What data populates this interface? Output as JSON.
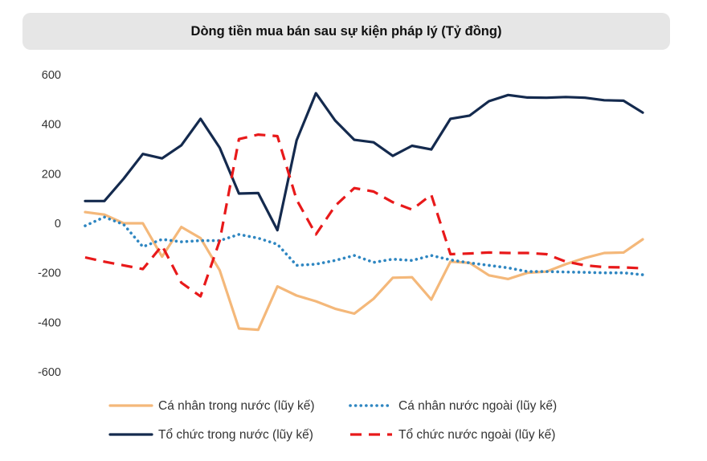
{
  "chart_data": {
    "type": "line",
    "title": "Dòng tiền mua bán sau sự kiện pháp lý (Tỷ đồng)",
    "xlabel": "",
    "ylabel": "",
    "ylim": [
      -600,
      600
    ],
    "yticks": [
      600,
      400,
      200,
      0,
      -200,
      -400,
      -600
    ],
    "grid": false,
    "legend_position": "bottom",
    "x": [
      1,
      2,
      3,
      4,
      5,
      6,
      7,
      8,
      9,
      10,
      11,
      12,
      13,
      14,
      15,
      16,
      17,
      18,
      19,
      20,
      21,
      22,
      23,
      24,
      25,
      26,
      27,
      28,
      29,
      30
    ],
    "series": [
      {
        "name": "Cá nhân trong nước (lũy kế)",
        "color": "#f4b87a",
        "style": "solid",
        "values": [
          45,
          35,
          0,
          0,
          -135,
          -15,
          -60,
          -190,
          -425,
          -430,
          -255,
          -292,
          -315,
          -345,
          -365,
          -305,
          -220,
          -218,
          -308,
          -155,
          -160,
          -210,
          -225,
          -200,
          -195,
          -165,
          -140,
          -120,
          -118,
          -65
        ]
      },
      {
        "name": "Cá nhân nước ngoài (lũy kế)",
        "color": "#2e86c1",
        "style": "dotted",
        "values": [
          -10,
          25,
          -5,
          -95,
          -65,
          -75,
          -70,
          -70,
          -45,
          -60,
          -85,
          -170,
          -165,
          -150,
          -130,
          -158,
          -145,
          -150,
          -130,
          -148,
          -160,
          -170,
          -180,
          -195,
          -195,
          -197,
          -198,
          -200,
          -200,
          -208
        ]
      },
      {
        "name": "Tổ chức trong nước (lũy kế)",
        "color": "#142a4e",
        "style": "solid",
        "values": [
          90,
          90,
          180,
          280,
          262,
          315,
          422,
          305,
          120,
          122,
          -28,
          335,
          525,
          415,
          337,
          327,
          272,
          313,
          298,
          422,
          435,
          493,
          518,
          508,
          507,
          510,
          507,
          497,
          495,
          447
        ]
      },
      {
        "name": "Tổ chức nước ngoài (lũy kế)",
        "color": "#e8191a",
        "style": "dashed",
        "values": [
          -138,
          -155,
          -170,
          -185,
          -90,
          -240,
          -295,
          -70,
          340,
          358,
          352,
          95,
          -45,
          70,
          142,
          128,
          85,
          55,
          115,
          -125,
          -122,
          -118,
          -120,
          -120,
          -125,
          -155,
          -170,
          -177,
          -178,
          -182
        ]
      }
    ]
  }
}
